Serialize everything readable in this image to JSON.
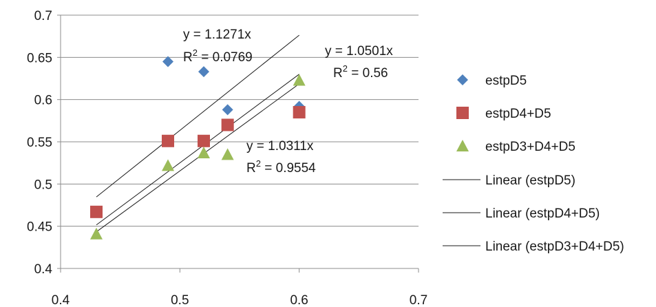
{
  "chart_data": {
    "type": "scatter",
    "xlim": [
      0.4,
      0.7
    ],
    "ylim": [
      0.4,
      0.7
    ],
    "x_ticks": [
      "0.4",
      "0.5",
      "0.6",
      "0.7"
    ],
    "y_ticks": [
      "0.4",
      "0.45",
      "0.5",
      "0.55",
      "0.6",
      "0.65",
      "0.7"
    ],
    "grid": "horizontal",
    "legend_position": "right",
    "series": [
      {
        "name": "estpD5",
        "marker": "diamond",
        "color": "#4f81bd",
        "points": [
          [
            0.49,
            0.645
          ],
          [
            0.52,
            0.633
          ],
          [
            0.54,
            0.588
          ],
          [
            0.6,
            0.592
          ]
        ],
        "trendline": {
          "name": "Linear (estpD5)",
          "slope": 1.1271,
          "x_range": [
            0.43,
            0.6
          ],
          "equation": "y = 1.1271x",
          "r2_prefix": "R",
          "r2_sup": "2",
          "r2_value": " = 0.0769"
        }
      },
      {
        "name": "estpD4+D5",
        "marker": "square",
        "color": "#c0504d",
        "points": [
          [
            0.43,
            0.467
          ],
          [
            0.49,
            0.551
          ],
          [
            0.52,
            0.551
          ],
          [
            0.54,
            0.57
          ],
          [
            0.6,
            0.585
          ]
        ],
        "trendline": {
          "name": "Linear (estpD4+D5)",
          "slope": 1.0501,
          "x_range": [
            0.43,
            0.6
          ],
          "equation": "y = 1.0501x",
          "r2_prefix": "R",
          "r2_sup": "2",
          "r2_value": " = 0.56"
        }
      },
      {
        "name": "estpD3+D4+D5",
        "marker": "triangle",
        "color": "#9bbb59",
        "points": [
          [
            0.43,
            0.441
          ],
          [
            0.49,
            0.522
          ],
          [
            0.52,
            0.537
          ],
          [
            0.54,
            0.535
          ],
          [
            0.6,
            0.623
          ]
        ],
        "trendline": {
          "name": "Linear (estpD3+D4+D5)",
          "slope": 1.0311,
          "x_range": [
            0.43,
            0.6
          ],
          "equation": "y = 1.0311x",
          "r2_prefix": "R",
          "r2_sup": "2",
          "r2_value": " = 0.9554"
        }
      }
    ],
    "legend": [
      {
        "label": "estpD5",
        "kind": "marker",
        "series": 0
      },
      {
        "label": "estpD4+D5",
        "kind": "marker",
        "series": 1
      },
      {
        "label": "estpD3+D4+D5",
        "kind": "marker",
        "series": 2
      },
      {
        "label": "Linear (estpD5)",
        "kind": "line",
        "series": 0
      },
      {
        "label": "Linear (estpD4+D5)",
        "kind": "line",
        "series": 1
      },
      {
        "label": "Linear (estpD3+D4+D5)",
        "kind": "line",
        "series": 2
      }
    ],
    "colors": {
      "gridline": "#8c8c8c",
      "axis": "#8c8c8c",
      "trendline": "#1a1a1a"
    }
  }
}
